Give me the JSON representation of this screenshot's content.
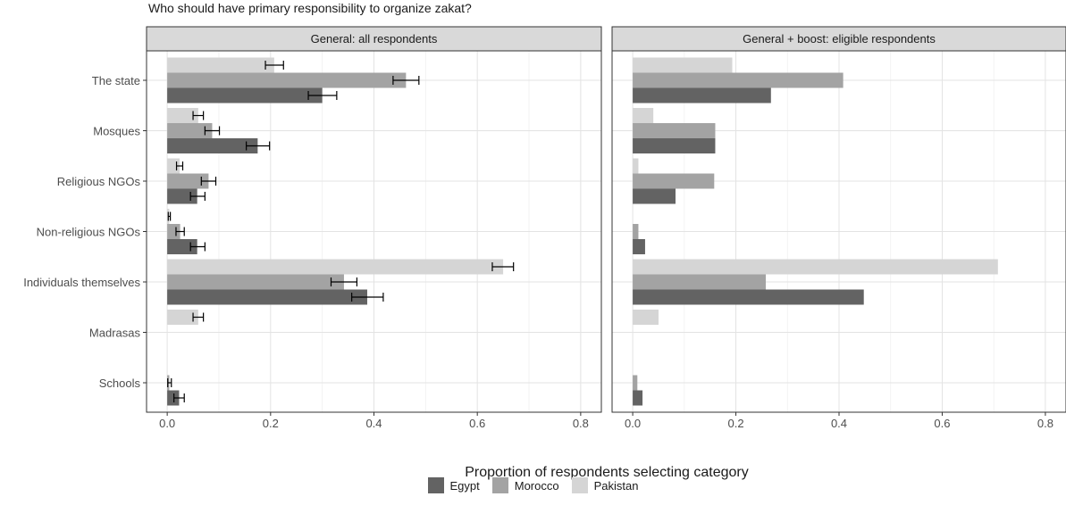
{
  "chart_data": {
    "type": "bar",
    "orientation": "horizontal",
    "title": "Who should have primary responsibility to organize zakat?",
    "xlabel": "Proportion of respondents selecting category",
    "xlim": [
      -0.04,
      0.84
    ],
    "xticks": [
      "0.0",
      "0.2",
      "0.4",
      "0.6",
      "0.8"
    ],
    "xtick_values": [
      0,
      0.2,
      0.4,
      0.6,
      0.8
    ],
    "categories": [
      "The state",
      "Mosques",
      "Religious NGOs",
      "Non-religious NGOs",
      "Individuals themselves",
      "Madrasas",
      "Schools"
    ],
    "grid": true,
    "legend_position": "bottom",
    "legend": [
      {
        "name": "Egypt",
        "color": "#636363"
      },
      {
        "name": "Morocco",
        "color": "#a3a3a3"
      },
      {
        "name": "Pakistan",
        "color": "#d5d5d5"
      }
    ],
    "panels": [
      {
        "title": "General: all respondents",
        "series": [
          {
            "name": "Egypt",
            "values": [
              0.3,
              0.175,
              0.058,
              0.058,
              0.387,
              null,
              0.023
            ],
            "err_low": [
              0.273,
              0.153,
              0.045,
              0.045,
              0.357,
              null,
              0.013
            ],
            "err_high": [
              0.328,
              0.198,
              0.073,
              0.073,
              0.418,
              null,
              0.033
            ]
          },
          {
            "name": "Morocco",
            "values": [
              0.462,
              0.087,
              0.08,
              0.025,
              0.342,
              null,
              0.004
            ],
            "err_low": [
              0.437,
              0.073,
              0.066,
              0.017,
              0.317,
              null,
              0.001
            ],
            "err_high": [
              0.487,
              0.101,
              0.094,
              0.033,
              0.367,
              null,
              0.008
            ]
          },
          {
            "name": "Pakistan",
            "values": [
              0.207,
              0.06,
              0.024,
              0.004,
              0.65,
              0.06,
              null
            ],
            "err_low": [
              0.19,
              0.05,
              0.018,
              0.002,
              0.629,
              0.05,
              null
            ],
            "err_high": [
              0.225,
              0.07,
              0.03,
              0.006,
              0.67,
              0.07,
              null
            ]
          }
        ]
      },
      {
        "title": "General + boost: eligible respondents",
        "series": [
          {
            "name": "Egypt",
            "values": [
              0.268,
              0.16,
              0.083,
              0.024,
              0.448,
              null,
              0.019
            ]
          },
          {
            "name": "Morocco",
            "values": [
              0.408,
              0.16,
              0.158,
              0.011,
              0.258,
              null,
              0.009
            ]
          },
          {
            "name": "Pakistan",
            "values": [
              0.193,
              0.04,
              0.011,
              null,
              0.708,
              0.05,
              null
            ]
          }
        ]
      }
    ]
  }
}
